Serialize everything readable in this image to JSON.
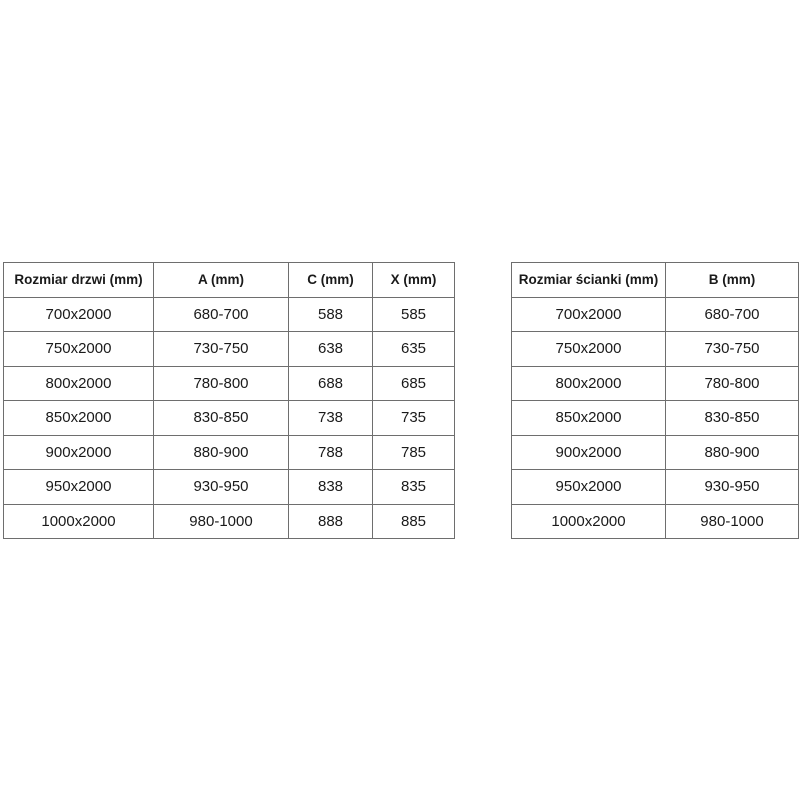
{
  "door_table": {
    "headers": [
      "Rozmiar drzwi (mm)",
      "A (mm)",
      "C (mm)",
      "X (mm)"
    ],
    "rows": [
      [
        "700x2000",
        "680-700",
        "588",
        "585"
      ],
      [
        "750x2000",
        "730-750",
        "638",
        "635"
      ],
      [
        "800x2000",
        "780-800",
        "688",
        "685"
      ],
      [
        "850x2000",
        "830-850",
        "738",
        "735"
      ],
      [
        "900x2000",
        "880-900",
        "788",
        "785"
      ],
      [
        "950x2000",
        "930-950",
        "838",
        "835"
      ],
      [
        "1000x2000",
        "980-1000",
        "888",
        "885"
      ]
    ]
  },
  "wall_table": {
    "headers": [
      "Rozmiar ścianki (mm)",
      "B (mm)"
    ],
    "rows": [
      [
        "700x2000",
        "680-700"
      ],
      [
        "750x2000",
        "730-750"
      ],
      [
        "800x2000",
        "780-800"
      ],
      [
        "850x2000",
        "830-850"
      ],
      [
        "900x2000",
        "880-900"
      ],
      [
        "950x2000",
        "930-950"
      ],
      [
        "1000x2000",
        "980-1000"
      ]
    ]
  }
}
